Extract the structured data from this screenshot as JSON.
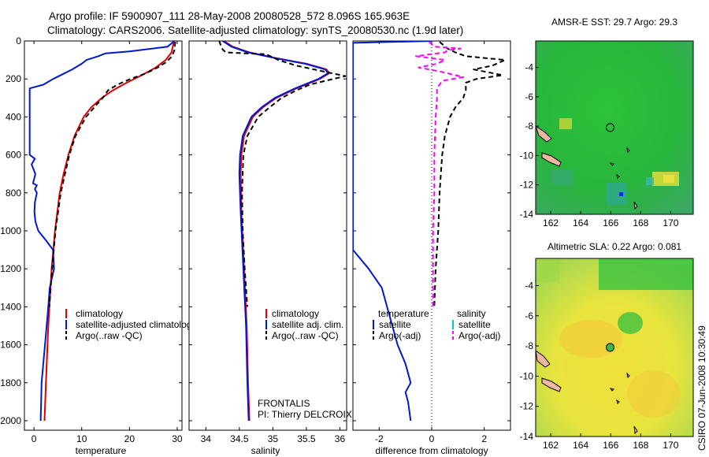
{
  "header": {
    "line1": "Argo profile: IF 5900907_111 28-May-2008 20080528_572 8.096S 165.963E",
    "line2": "Climatology: CARS2006. Satellite-adjusted climatology: synTS_20080530.nc (1.9d later)"
  },
  "colors": {
    "climatology": "#e00000",
    "satellite": "#0018d0",
    "argo": "#000000",
    "argo_salinity_diff": "#ff00ff",
    "satellite_salinity": "#00c8c8"
  },
  "chart_data": [
    {
      "id": "temperature",
      "type": "line",
      "xlabel": "temperature",
      "ylabel": "",
      "xlim": [
        -2,
        31
      ],
      "ylim": [
        2050,
        0
      ],
      "xticks": [
        0,
        10,
        20,
        30
      ],
      "yticks": [
        0,
        200,
        400,
        600,
        800,
        1000,
        1200,
        1400,
        1600,
        1800,
        2000
      ],
      "legend": [
        "climatology",
        "satellite-adjusted climatology",
        "Argo(..raw -QC)"
      ],
      "series": [
        {
          "name": "climatology",
          "style": "solid",
          "color": "#e00000",
          "depth": [
            5,
            60,
            100,
            140,
            180,
            220,
            260,
            300,
            350,
            400,
            500,
            600,
            700,
            800,
            1000,
            1200,
            1500,
            1800,
            2000
          ],
          "values": [
            29.3,
            28.8,
            27.6,
            25.5,
            22.6,
            19.4,
            16.5,
            14.2,
            12.0,
            10.4,
            8.5,
            7.2,
            6.2,
            5.4,
            4.4,
            3.7,
            3.0,
            2.5,
            2.2
          ]
        },
        {
          "name": "satellite-adjusted climatology",
          "style": "solid",
          "color": "#0018d0",
          "depth": [
            0,
            30,
            55,
            65,
            80,
            100,
            120,
            150,
            175,
            200,
            230,
            250,
            400,
            600,
            620,
            650,
            700,
            750,
            760,
            780,
            800,
            850,
            900,
            950,
            1000,
            1050,
            1100,
            1200,
            1300,
            1400,
            1600,
            1800,
            2000
          ],
          "values": [
            29.4,
            28.0,
            20.0,
            15.0,
            13.5,
            11.0,
            10.0,
            8.0,
            6.0,
            4.0,
            2.0,
            -0.9,
            -0.9,
            -0.9,
            0.2,
            -0.5,
            0.3,
            -0.2,
            0.6,
            0.2,
            0.6,
            0.2,
            0.1,
            0.3,
            0.9,
            2.5,
            4.0,
            4.2,
            3.3,
            3.0,
            2.3,
            1.6,
            1.4
          ]
        },
        {
          "name": "Argo(..raw -QC)",
          "style": "dashed",
          "color": "#000000",
          "depth": [
            5,
            50,
            80,
            110,
            140,
            170,
            200,
            230,
            260,
            300,
            350,
            400,
            500,
            600,
            800,
            1000,
            1200,
            1400
          ],
          "values": [
            29.6,
            29.4,
            28.9,
            27.8,
            25.9,
            23.5,
            20.2,
            17.5,
            15.5,
            14.4,
            12.6,
            10.9,
            8.7,
            7.4,
            5.6,
            4.5,
            3.8,
            3.2
          ]
        }
      ]
    },
    {
      "id": "salinity",
      "type": "line",
      "xlabel": "salinity",
      "ylabel": "",
      "xlim": [
        33.75,
        36.1
      ],
      "ylim": [
        2050,
        0
      ],
      "xticks": [
        34,
        34.5,
        35,
        35.5,
        36
      ],
      "xticklabels": [
        "34",
        "34.5",
        "35",
        "35.5",
        "36"
      ],
      "legend": [
        "climatology",
        "satellite adj. clim.",
        "Argo(..raw -QC)"
      ],
      "annotations": [
        "FRONTALIS",
        "PI: Thierry DELCROIX"
      ],
      "series": [
        {
          "name": "climatology",
          "style": "solid",
          "color": "#e00000",
          "depth": [
            0,
            30,
            60,
            90,
            120,
            150,
            170,
            200,
            250,
            300,
            350,
            400,
            500,
            600,
            700,
            900,
            1200,
            1500,
            1800,
            2000
          ],
          "values": [
            34.27,
            34.4,
            34.65,
            35.05,
            35.5,
            35.8,
            35.84,
            35.7,
            35.35,
            35.05,
            34.85,
            34.7,
            34.57,
            34.53,
            34.52,
            34.53,
            34.57,
            34.61,
            34.63,
            34.65
          ]
        },
        {
          "name": "satellite adj. clim.",
          "style": "solid",
          "color": "#0018d0",
          "depth": [
            0,
            30,
            60,
            90,
            120,
            150,
            170,
            200,
            250,
            300,
            350,
            400,
            500,
            600,
            700,
            900,
            1200,
            1500,
            1800,
            2000
          ],
          "values": [
            34.25,
            34.38,
            34.63,
            35.03,
            35.48,
            35.78,
            35.82,
            35.68,
            35.33,
            35.03,
            34.83,
            34.68,
            34.55,
            34.51,
            34.5,
            34.52,
            34.56,
            34.6,
            34.62,
            34.64
          ]
        },
        {
          "name": "Argo(..raw -QC)",
          "style": "dashed",
          "color": "#000000",
          "depth": [
            0,
            20,
            45,
            60,
            70,
            100,
            130,
            160,
            185,
            200,
            230,
            260,
            300,
            350,
            400,
            500,
            600,
            800,
            1000,
            1200,
            1400
          ],
          "values": [
            34.2,
            34.22,
            34.25,
            34.3,
            34.9,
            35.08,
            35.35,
            35.75,
            36.08,
            35.9,
            35.55,
            35.35,
            35.13,
            34.95,
            34.78,
            34.62,
            34.56,
            34.54,
            34.55,
            34.58,
            34.62
          ]
        }
      ]
    },
    {
      "id": "difference",
      "type": "line",
      "xlabel": "difference from climatology",
      "ylabel": "",
      "xlim": [
        -3,
        3
      ],
      "ylim": [
        2050,
        0
      ],
      "xticks": [
        -2,
        0,
        2
      ],
      "legend_headers": [
        "temperature",
        "salinity"
      ],
      "legend": [
        "satellite",
        "Argo(-adj)",
        "satellite",
        "Argo(-adj)"
      ],
      "series": [
        {
          "name": "temperature satellite",
          "style": "solid",
          "color": "#0018d0",
          "depth": [
            0,
            10,
            1100,
            1200,
            1300,
            1400,
            1500,
            1600,
            1700,
            1800,
            1850,
            1900,
            2000
          ],
          "values": [
            0.0,
            -3.0,
            -3.0,
            -2.4,
            -1.9,
            -1.7,
            -1.5,
            -1.3,
            -1.0,
            -0.8,
            -1.0,
            -0.9,
            -0.8
          ]
        },
        {
          "name": "temperature Argo(-adj)",
          "style": "dashed",
          "color": "#000000",
          "depth": [
            5,
            40,
            60,
            80,
            100,
            130,
            150,
            180,
            200,
            220,
            260,
            300,
            350,
            400,
            500,
            600,
            800,
            1000,
            1200,
            1400
          ],
          "values": [
            0.3,
            0.6,
            0.9,
            1.3,
            2.8,
            2.3,
            1.6,
            2.7,
            1.7,
            1.3,
            1.3,
            1.2,
            0.9,
            0.7,
            0.5,
            0.4,
            0.3,
            0.25,
            0.15,
            0.1
          ]
        },
        {
          "name": "salinity Argo(-adj)",
          "style": "dashed",
          "color": "#ff00ff",
          "depth": [
            5,
            30,
            40,
            50,
            60,
            80,
            100,
            120,
            140,
            160,
            190,
            210,
            230,
            250,
            300,
            400,
            600,
            800,
            1000,
            1200,
            1400
          ],
          "values": [
            -0.1,
            0.1,
            1.1,
            0.6,
            0.5,
            -0.6,
            0.5,
            0.2,
            -0.5,
            0.3,
            1.2,
            0.4,
            0.3,
            0.2,
            0.2,
            0.15,
            0.1,
            0.1,
            0.05,
            0.05,
            0.05
          ]
        }
      ]
    },
    {
      "id": "sst_map",
      "type": "heatmap",
      "title": "AMSR-E SST: 29.7 Argo: 29.3",
      "xlim": [
        161,
        171.5
      ],
      "ylim": [
        -14,
        -2.2
      ],
      "xticks": [
        162,
        164,
        166,
        168,
        170
      ],
      "yticks": [
        -4,
        -6,
        -8,
        -10,
        -12,
        -14
      ],
      "argo_marker": [
        165.963,
        -8.096
      ]
    },
    {
      "id": "sla_map",
      "type": "heatmap",
      "title": "Altimetric SLA: 0.22 Argo: 0.081",
      "xlim": [
        161,
        171.5
      ],
      "ylim": [
        -14,
        -2.2
      ],
      "xticks": [
        162,
        164,
        166,
        168,
        170
      ],
      "yticks": [
        -4,
        -6,
        -8,
        -10,
        -12,
        -14
      ],
      "argo_marker": [
        165.963,
        -8.096
      ]
    }
  ],
  "footer": {
    "credit": "CSIRO 07-Jun-2008 10:30:49"
  }
}
